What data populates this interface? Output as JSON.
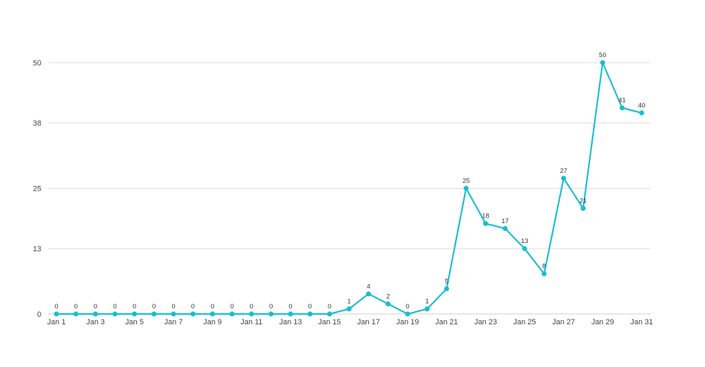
{
  "colors": {
    "series": "#17bed0",
    "grid": "#dcdcdc",
    "text": "#444444"
  },
  "chart_data": {
    "type": "line",
    "title": "",
    "xlabel": "",
    "ylabel": "",
    "grid": true,
    "legend": "none",
    "ylim": [
      0,
      50
    ],
    "yticks": [
      "0",
      "13",
      "25",
      "38",
      "50"
    ],
    "x": [
      "Jan 1",
      "Jan 2",
      "Jan 3",
      "Jan 4",
      "Jan 5",
      "Jan 6",
      "Jan 7",
      "Jan 8",
      "Jan 9",
      "Jan 10",
      "Jan 11",
      "Jan 12",
      "Jan 13",
      "Jan 14",
      "Jan 15",
      "Jan 16",
      "Jan 17",
      "Jan 18",
      "Jan 19",
      "Jan 20",
      "Jan 21",
      "Jan 22",
      "Jan 23",
      "Jan 24",
      "Jan 25",
      "Jan 26",
      "Jan 27",
      "Jan 28",
      "Jan 29",
      "Jan 30",
      "Jan 31"
    ],
    "xtick_labels": [
      "Jan 1",
      "Jan 3",
      "Jan 5",
      "Jan 7",
      "Jan 9",
      "Jan 11",
      "Jan 13",
      "Jan 15",
      "Jan 17",
      "Jan 19",
      "Jan 21",
      "Jan 23",
      "Jan 25",
      "Jan 27",
      "Jan 29",
      "Jan 31"
    ],
    "series": [
      {
        "values": [
          0,
          0,
          0,
          0,
          0,
          0,
          0,
          0,
          0,
          0,
          0,
          0,
          0,
          0,
          0,
          1,
          4,
          2,
          0,
          1,
          5,
          25,
          18,
          17,
          13,
          8,
          27,
          21,
          50,
          41,
          40
        ]
      }
    ]
  }
}
